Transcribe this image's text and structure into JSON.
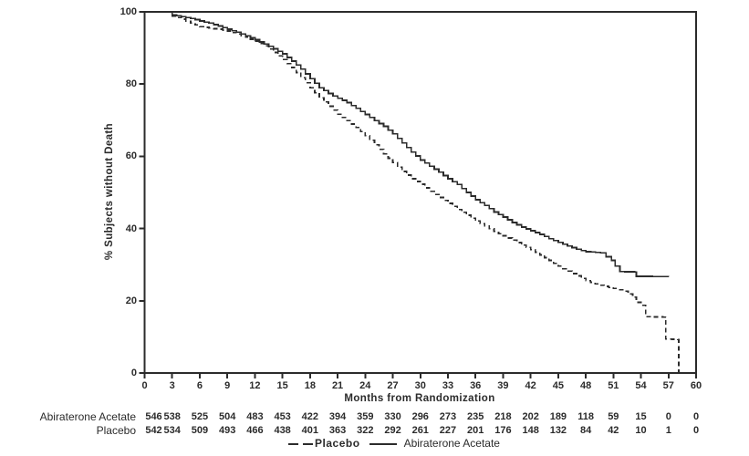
{
  "figure": {
    "background": "#ffffff",
    "line_color": "#2b2b2b",
    "text_color": "#2b2b2b"
  },
  "chart_data": {
    "type": "line",
    "subtype": "kaplan-meier-step",
    "title": "",
    "xlabel": "Months from Randomization",
    "ylabel": "% Subjects without Death",
    "xlim": [
      0,
      60
    ],
    "ylim": [
      0,
      100
    ],
    "x_ticks": [
      0,
      3,
      6,
      9,
      12,
      15,
      18,
      21,
      24,
      27,
      30,
      33,
      36,
      39,
      42,
      45,
      48,
      51,
      54,
      57,
      60
    ],
    "y_ticks": [
      0,
      20,
      40,
      60,
      80,
      100
    ],
    "grid": false,
    "frame": true,
    "legend_position": "bottom",
    "legend": [
      {
        "name": "Placebo",
        "style": "dashed"
      },
      {
        "name": "Abiraterone Acetate",
        "style": "solid"
      }
    ],
    "series": [
      {
        "name": "Abiraterone Acetate",
        "style": "solid",
        "points": [
          [
            0,
            100
          ],
          [
            2.6,
            100
          ],
          [
            3,
            99.2
          ],
          [
            4,
            98.7
          ],
          [
            5,
            98.2
          ],
          [
            6,
            97.5
          ],
          [
            7,
            96.9
          ],
          [
            8,
            96.1
          ],
          [
            9,
            95.2
          ],
          [
            10,
            94.4
          ],
          [
            11,
            93.4
          ],
          [
            12,
            92.3
          ],
          [
            13,
            91.1
          ],
          [
            14,
            89.8
          ],
          [
            15,
            88.4
          ],
          [
            16,
            86.4
          ],
          [
            17,
            84.2
          ],
          [
            18,
            81.5
          ],
          [
            19,
            79.0
          ],
          [
            20,
            77.4
          ],
          [
            21,
            76.1
          ],
          [
            22,
            74.9
          ],
          [
            23,
            73.3
          ],
          [
            24,
            71.6
          ],
          [
            25,
            69.9
          ],
          [
            26,
            68.3
          ],
          [
            27,
            66.2
          ],
          [
            28,
            63.7
          ],
          [
            29,
            61.2
          ],
          [
            30,
            59.0
          ],
          [
            31,
            57.3
          ],
          [
            32,
            55.6
          ],
          [
            33,
            53.8
          ],
          [
            34,
            52.2
          ],
          [
            35,
            50.0
          ],
          [
            36,
            48.0
          ],
          [
            37,
            46.4
          ],
          [
            38,
            44.6
          ],
          [
            39,
            43.2
          ],
          [
            40,
            41.7
          ],
          [
            41,
            40.4
          ],
          [
            42,
            39.4
          ],
          [
            43,
            38.4
          ],
          [
            44,
            37.2
          ],
          [
            45,
            36.2
          ],
          [
            46,
            35.2
          ],
          [
            47,
            34.3
          ],
          [
            48,
            33.6
          ],
          [
            49.6,
            33.3
          ],
          [
            50.2,
            32.2
          ],
          [
            50.8,
            31.2
          ],
          [
            51.2,
            29.6
          ],
          [
            51.7,
            28.1
          ],
          [
            53.3,
            28.0
          ],
          [
            53.5,
            26.8
          ],
          [
            57.0,
            26.7
          ]
        ]
      },
      {
        "name": "Placebo",
        "style": "dashed",
        "points": [
          [
            0,
            100
          ],
          [
            2.4,
            100
          ],
          [
            3,
            98.9
          ],
          [
            4,
            98.0
          ],
          [
            5,
            96.9
          ],
          [
            6,
            95.9
          ],
          [
            7,
            95.5
          ],
          [
            8,
            95.2
          ],
          [
            9,
            94.7
          ],
          [
            10,
            93.9
          ],
          [
            11,
            93.0
          ],
          [
            12,
            91.9
          ],
          [
            13,
            90.6
          ],
          [
            14,
            88.8
          ],
          [
            15,
            86.8
          ],
          [
            16,
            84.6
          ],
          [
            17,
            81.8
          ],
          [
            18,
            79.0
          ],
          [
            19,
            76.2
          ],
          [
            20,
            73.9
          ],
          [
            21,
            71.7
          ],
          [
            22,
            69.9
          ],
          [
            23,
            68.0
          ],
          [
            24,
            65.7
          ],
          [
            25,
            63.2
          ],
          [
            26,
            60.7
          ],
          [
            27,
            58.3
          ],
          [
            28,
            55.8
          ],
          [
            29,
            53.8
          ],
          [
            30,
            52.3
          ],
          [
            31,
            50.3
          ],
          [
            32,
            48.6
          ],
          [
            33,
            47.0
          ],
          [
            34,
            45.3
          ],
          [
            35,
            43.7
          ],
          [
            36,
            42.1
          ],
          [
            37,
            40.7
          ],
          [
            38,
            39.2
          ],
          [
            39,
            38.0
          ],
          [
            40,
            36.8
          ],
          [
            41,
            35.4
          ],
          [
            42,
            34.2
          ],
          [
            43,
            32.7
          ],
          [
            44,
            31.2
          ],
          [
            45,
            29.6
          ],
          [
            46,
            28.2
          ],
          [
            47,
            26.9
          ],
          [
            48,
            25.6
          ],
          [
            49,
            24.7
          ],
          [
            50,
            24.0
          ],
          [
            51,
            23.4
          ],
          [
            52,
            22.7
          ],
          [
            52.6,
            21.9
          ],
          [
            53.1,
            21.0
          ],
          [
            53.5,
            19.6
          ],
          [
            54.2,
            18.8
          ],
          [
            54.5,
            15.6
          ],
          [
            56.4,
            15.5
          ],
          [
            56.7,
            9.4
          ],
          [
            58.0,
            9.3
          ],
          [
            58.1,
            0
          ]
        ]
      }
    ],
    "risk_table": {
      "rows": [
        {
          "label": "Abiraterone Acetate",
          "counts": [
            546,
            538,
            525,
            504,
            483,
            453,
            422,
            394,
            359,
            330,
            296,
            273,
            235,
            218,
            202,
            189,
            118,
            59,
            15,
            0,
            0
          ]
        },
        {
          "label": "Placebo",
          "counts": [
            542,
            534,
            509,
            493,
            466,
            438,
            401,
            363,
            322,
            292,
            261,
            227,
            201,
            176,
            148,
            132,
            84,
            42,
            10,
            1,
            0
          ]
        }
      ]
    }
  }
}
